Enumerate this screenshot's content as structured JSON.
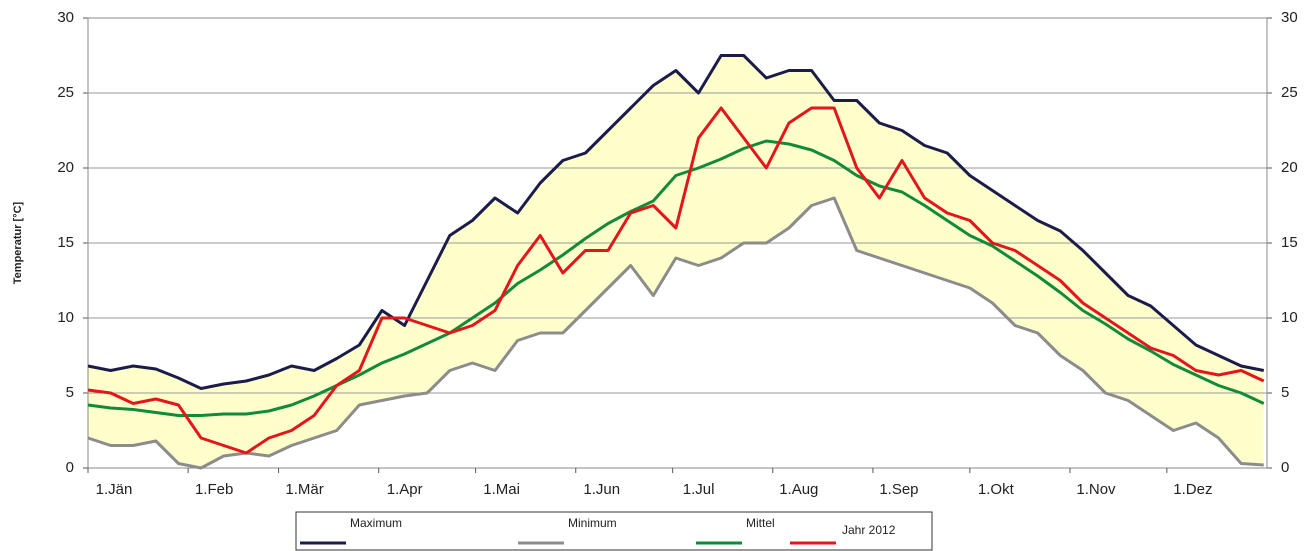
{
  "chart_data": {
    "type": "line",
    "ylabel": "Temperatur [°C]",
    "x": [
      0,
      7,
      14,
      21,
      28,
      35,
      42,
      49,
      56,
      63,
      70,
      77,
      84,
      91,
      98,
      105,
      112,
      119,
      126,
      133,
      140,
      147,
      154,
      161,
      168,
      175,
      182,
      189,
      196,
      203,
      210,
      217,
      224,
      231,
      238,
      245,
      252,
      259,
      266,
      273,
      280,
      287,
      294,
      301,
      308,
      315,
      322,
      329,
      336,
      343,
      350,
      357,
      364
    ],
    "xlim": [
      0,
      365
    ],
    "xticks": [
      {
        "value": 0,
        "label": "1.Jän"
      },
      {
        "value": 31,
        "label": "1.Feb"
      },
      {
        "value": 59,
        "label": "1.Mär"
      },
      {
        "value": 90,
        "label": "1.Apr"
      },
      {
        "value": 120,
        "label": "1.Mai"
      },
      {
        "value": 151,
        "label": "1.Jun"
      },
      {
        "value": 181,
        "label": "1.Jul"
      },
      {
        "value": 212,
        "label": "1.Aug"
      },
      {
        "value": 243,
        "label": "1.Sep"
      },
      {
        "value": 273,
        "label": "1.Okt"
      },
      {
        "value": 304,
        "label": "1.Nov"
      },
      {
        "value": 334,
        "label": "1.Dez"
      }
    ],
    "ylim": [
      0,
      30
    ],
    "yticks": [
      0,
      5,
      10,
      15,
      20,
      25,
      30
    ],
    "grid": true,
    "band_color": "#ffffcc",
    "series": [
      {
        "name": "Maximum",
        "color": "#1c1c4a",
        "values": [
          6.8,
          6.5,
          6.8,
          6.6,
          6.0,
          5.3,
          5.6,
          5.8,
          6.2,
          6.8,
          6.5,
          7.3,
          8.2,
          10.5,
          9.5,
          12.5,
          15.5,
          16.5,
          18,
          17,
          19,
          20.5,
          21,
          22.5,
          24,
          25.5,
          26.5,
          25,
          27.5,
          27.5,
          26,
          26.5,
          26.5,
          24.5,
          24.5,
          23,
          22.5,
          21.5,
          21,
          19.5,
          18.5,
          17.5,
          16.5,
          15.8,
          14.5,
          13,
          11.5,
          10.8,
          9.5,
          8.2,
          7.5,
          6.8,
          6.5
        ]
      },
      {
        "name": "Minimum",
        "color": "#8c8c8c",
        "values": [
          2,
          1.5,
          1.5,
          1.8,
          0.3,
          0,
          0.8,
          1,
          0.8,
          1.5,
          2,
          2.5,
          4.2,
          4.5,
          4.8,
          5,
          6.5,
          7,
          6.5,
          8.5,
          9,
          9,
          10.5,
          12,
          13.5,
          11.5,
          14,
          13.5,
          14,
          15,
          15,
          16,
          17.5,
          18,
          14.5,
          14,
          13.5,
          13,
          12.5,
          12,
          11,
          9.5,
          9,
          7.5,
          6.5,
          5,
          4.5,
          3.5,
          2.5,
          3,
          2,
          0.3,
          0.2
        ]
      },
      {
        "name": "Mittel",
        "color": "#138a3a",
        "values": [
          4.2,
          4.0,
          3.9,
          3.7,
          3.5,
          3.5,
          3.6,
          3.6,
          3.8,
          4.2,
          4.8,
          5.5,
          6.2,
          7.0,
          7.6,
          8.3,
          9.0,
          10.0,
          11.0,
          12.3,
          13.2,
          14.2,
          15.3,
          16.3,
          17.1,
          17.8,
          19.5,
          20.0,
          20.6,
          21.3,
          21.8,
          21.6,
          21.2,
          20.5,
          19.5,
          18.8,
          18.4,
          17.5,
          16.5,
          15.5,
          14.8,
          13.8,
          12.8,
          11.7,
          10.5,
          9.6,
          8.6,
          7.8,
          6.9,
          6.2,
          5.5,
          5.0,
          4.3
        ]
      },
      {
        "name": "Jahr 2012",
        "color": "#e3161b",
        "values": [
          5.2,
          5.0,
          4.3,
          4.6,
          4.2,
          2,
          1.5,
          1.0,
          2,
          2.5,
          3.5,
          5.5,
          6.5,
          10,
          10,
          9.5,
          9,
          9.5,
          10.5,
          13.5,
          15.5,
          13,
          14.5,
          14.5,
          17,
          17.5,
          16,
          22,
          24,
          22,
          20,
          23,
          24,
          24,
          20,
          18,
          20.5,
          18,
          17,
          16.5,
          15,
          14.5,
          13.5,
          12.5,
          11,
          10,
          9,
          8,
          7.5,
          6.5,
          6.2,
          6.5,
          5.8
        ]
      }
    ]
  }
}
